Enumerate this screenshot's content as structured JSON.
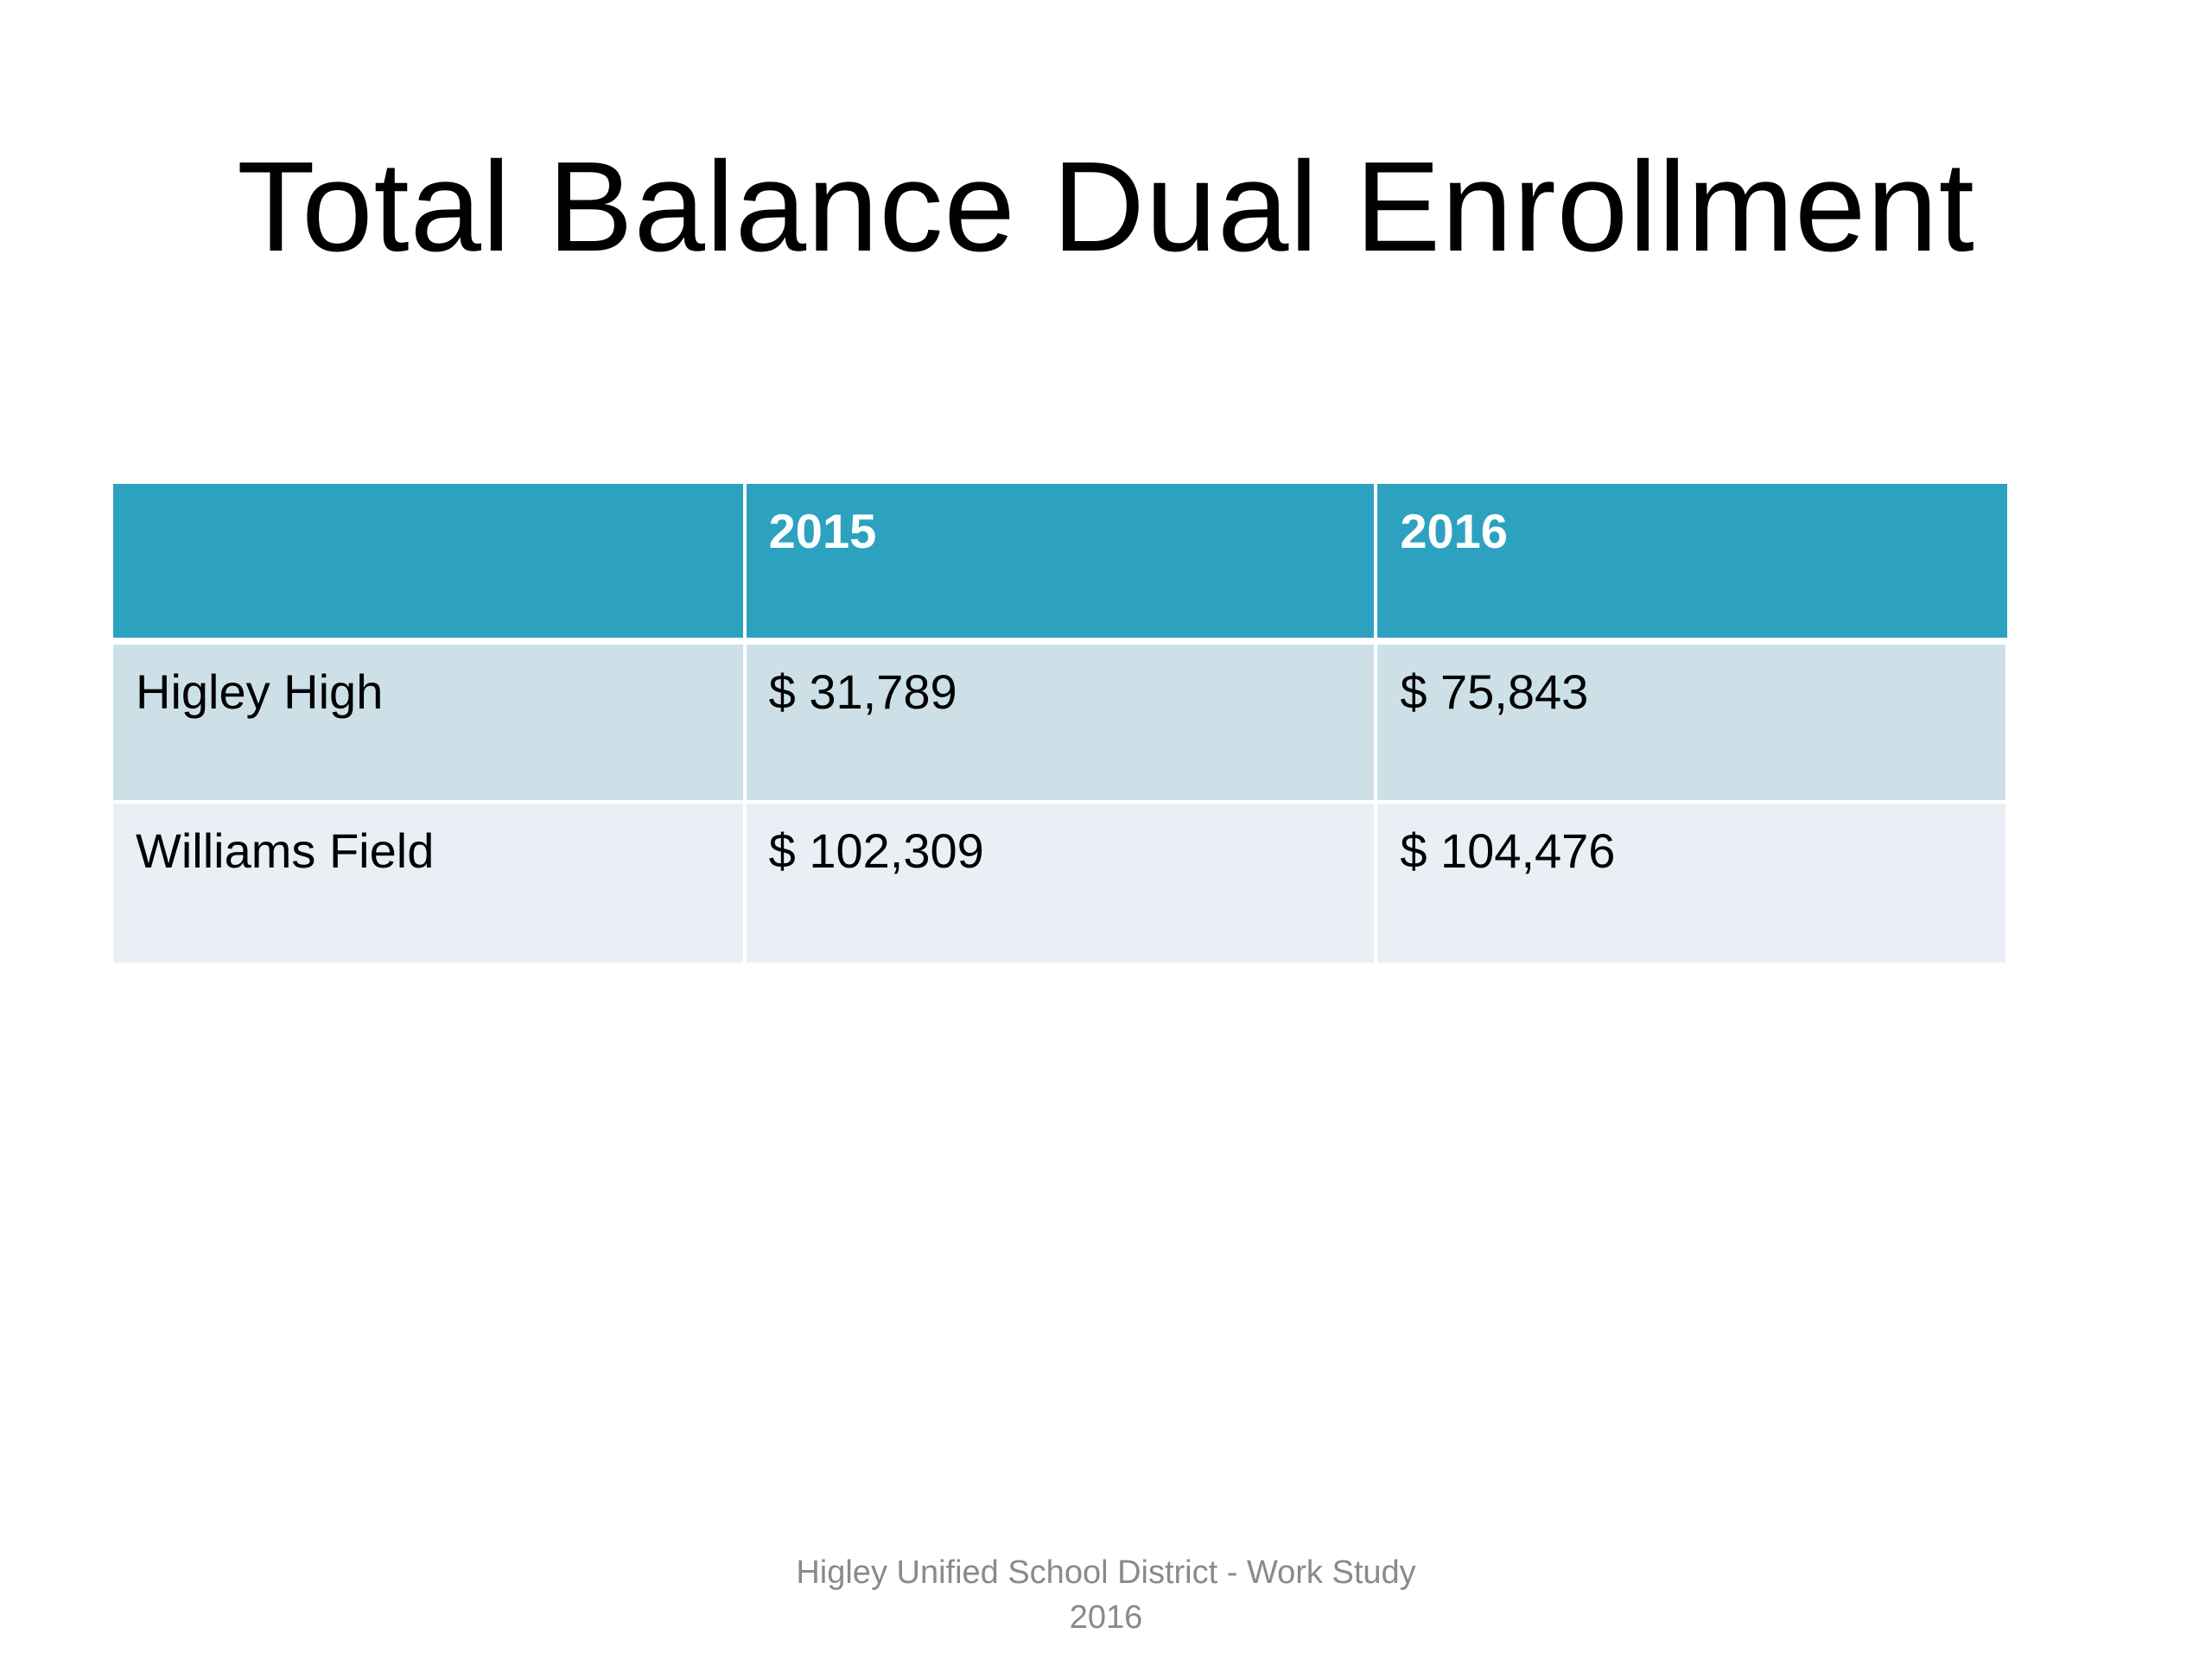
{
  "slide": {
    "title": "Total Balance Dual Enrollment",
    "footer_line1": "Higley Unified School District  - Work Study",
    "footer_line2": "2016"
  },
  "table": {
    "headers": [
      "",
      "2015",
      "2016"
    ],
    "rows": [
      {
        "school": "Higley High",
        "v2015": "$ 31,789",
        "v2016": "$ 75,843"
      },
      {
        "school": "Williams Field",
        "v2015": "$ 102,309",
        "v2016": "$ 104,476"
      }
    ]
  },
  "colors": {
    "header_bg": "#2ca2c0",
    "row1_bg": "#cde0e8",
    "row2_bg": "#e9eff4"
  }
}
